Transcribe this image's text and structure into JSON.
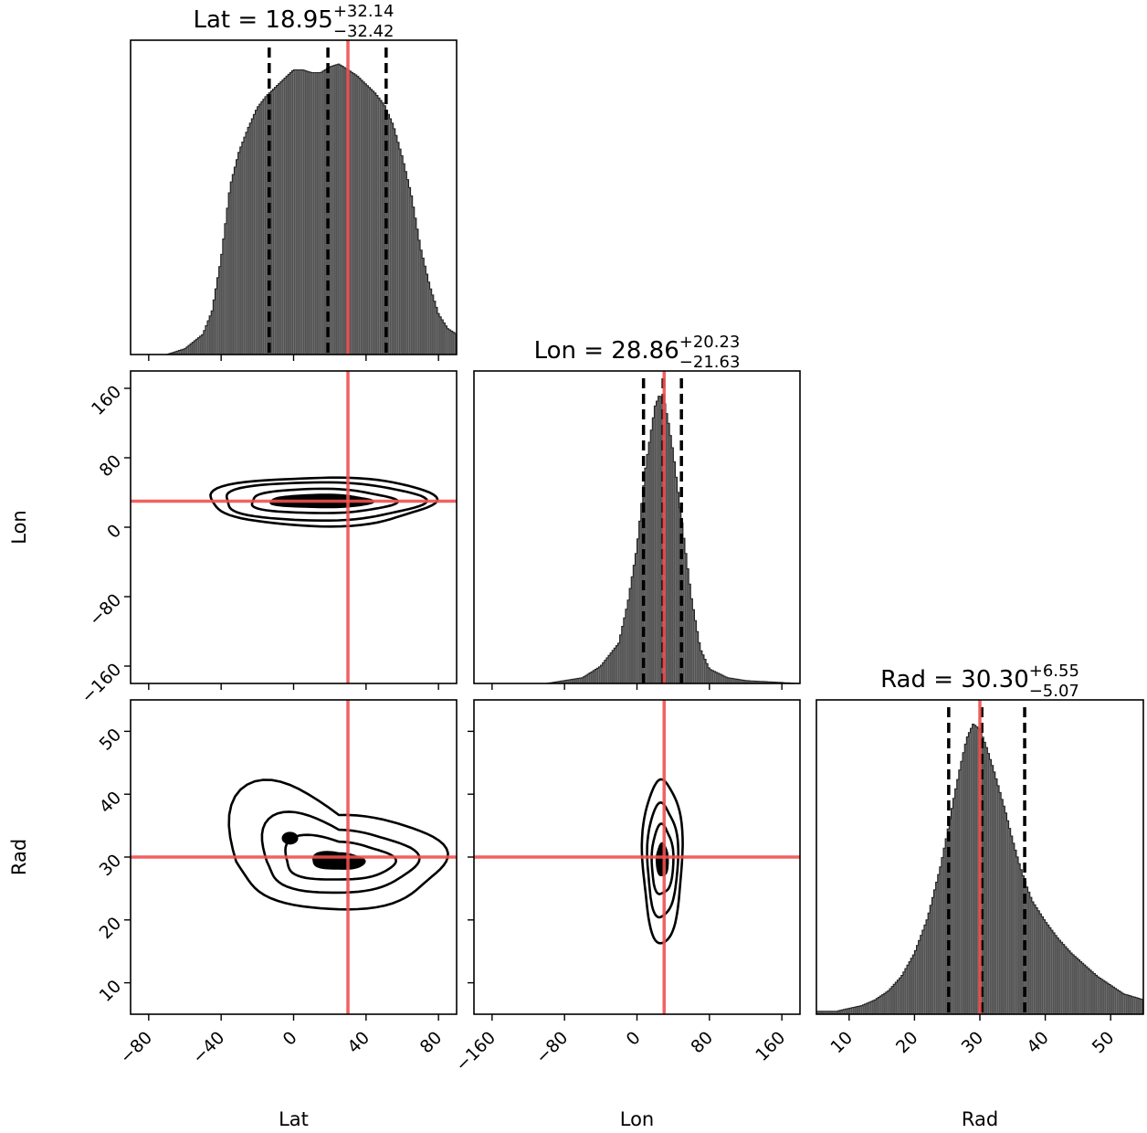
{
  "chart_data": {
    "type": "corner",
    "parameters": [
      {
        "name": "Lat",
        "median": "18.95",
        "plus": "+32.14",
        "minus": "−32.42",
        "quantiles": [
          -13.47,
          18.95,
          51.09
        ],
        "truth": 30,
        "range": [
          -90,
          90
        ],
        "ticks": [
          -80,
          -40,
          0,
          40,
          80
        ],
        "tick_labels": [
          "−80",
          "−40",
          "0",
          "40",
          "80"
        ],
        "hist_x": [
          -90,
          -80,
          -70,
          -60,
          -50,
          -45,
          -40,
          -35,
          -30,
          -25,
          -20,
          -15,
          -10,
          -5,
          0,
          5,
          10,
          15,
          20,
          25,
          30,
          35,
          40,
          45,
          50,
          55,
          60,
          65,
          70,
          75,
          80,
          85,
          90
        ],
        "hist_y": [
          0.0,
          0.0,
          0.0,
          0.02,
          0.07,
          0.15,
          0.33,
          0.58,
          0.7,
          0.78,
          0.85,
          0.89,
          0.92,
          0.95,
          0.98,
          0.98,
          0.97,
          0.97,
          0.99,
          1.0,
          0.98,
          0.96,
          0.93,
          0.9,
          0.86,
          0.79,
          0.68,
          0.55,
          0.37,
          0.24,
          0.14,
          0.09,
          0.07
        ]
      },
      {
        "name": "Lon",
        "median": "28.86",
        "plus": "+20.23",
        "minus": "−21.63",
        "quantiles": [
          7.23,
          28.86,
          49.09
        ],
        "truth": 30,
        "range": [
          -180,
          180
        ],
        "ticks": [
          -160,
          -80,
          0,
          80,
          160
        ],
        "tick_labels": [
          "−160",
          "−80",
          "0",
          "80",
          "160"
        ],
        "hist_x": [
          -180,
          -100,
          -80,
          -60,
          -40,
          -20,
          -10,
          0,
          10,
          20,
          25,
          30,
          35,
          40,
          50,
          60,
          70,
          80,
          100,
          120,
          180
        ],
        "hist_y": [
          0.0,
          0.0,
          0.01,
          0.02,
          0.06,
          0.14,
          0.28,
          0.47,
          0.76,
          0.96,
          1.0,
          0.98,
          0.9,
          0.8,
          0.55,
          0.3,
          0.12,
          0.05,
          0.02,
          0.01,
          0.0
        ]
      },
      {
        "name": "Rad",
        "median": "30.30",
        "plus": "+6.55",
        "minus": "−5.07",
        "quantiles": [
          25.23,
          30.3,
          36.85
        ],
        "truth": 30,
        "range": [
          5,
          55
        ],
        "ticks": [
          10,
          20,
          30,
          40,
          50
        ],
        "tick_labels": [
          "10",
          "20",
          "30",
          "40",
          "50"
        ],
        "hist_x": [
          5,
          8,
          10,
          12,
          14,
          16,
          18,
          20,
          22,
          24,
          25,
          26,
          27,
          28,
          29,
          30,
          31,
          32,
          33,
          34,
          35,
          36,
          37,
          38,
          40,
          42,
          44,
          46,
          48,
          50,
          52,
          55
        ],
        "hist_y": [
          0.01,
          0.01,
          0.02,
          0.03,
          0.05,
          0.08,
          0.13,
          0.21,
          0.33,
          0.51,
          0.62,
          0.74,
          0.85,
          0.95,
          1.0,
          0.98,
          0.92,
          0.85,
          0.77,
          0.69,
          0.6,
          0.52,
          0.45,
          0.39,
          0.32,
          0.26,
          0.21,
          0.17,
          0.13,
          0.1,
          0.07,
          0.05
        ]
      }
    ],
    "truth_color": "#f05050",
    "contour_color": "#000000",
    "hist_color": "#555555",
    "pairs": [
      {
        "x": "Lat",
        "y": "Lon",
        "center": [
          15,
          30
        ],
        "sx": [
          28,
          40,
          55,
          62
        ],
        "sy": [
          7,
          14,
          22,
          28
        ]
      },
      {
        "x": "Lat",
        "y": "Rad",
        "center": [
          25,
          29.3
        ],
        "sx": [
          14,
          30,
          42,
          58
        ],
        "sy": [
          1.2,
          3.0,
          5.0,
          7.5
        ]
      },
      {
        "x": "Lon",
        "y": "Rad",
        "center": [
          28,
          29.5
        ],
        "sx": [
          6,
          12,
          17,
          22
        ],
        "sy": [
          2.5,
          5.5,
          9.0,
          13.0
        ]
      }
    ]
  }
}
